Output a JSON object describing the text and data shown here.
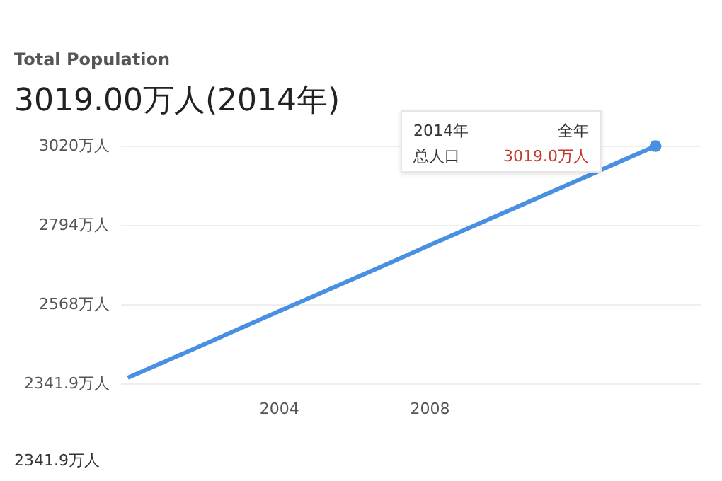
{
  "chart_data": {
    "type": "line",
    "title": "Total Population",
    "subtitle": "3019.00万人(2014年)",
    "x": [
      2000,
      2001,
      2002,
      2003,
      2004,
      2005,
      2006,
      2007,
      2008,
      2009,
      2010,
      2011,
      2012,
      2013,
      2014
    ],
    "series": [
      {
        "color": "#4a90e2",
        "values": [
          2358,
          2405,
          2452,
          2500,
          2547,
          2594,
          2641,
          2688,
          2736,
          2783,
          2830,
          2877,
          2924,
          2972,
          3019.0
        ]
      },
      {
        "type": "scatter",
        "color": "#4a90e2",
        "x": [
          2014
        ],
        "values": [
          3019.0
        ]
      }
    ],
    "xlim": [
      1999.8,
      2015.2
    ],
    "xticks": [
      2004,
      2008
    ],
    "ylim": [
      2341.9,
      3020
    ],
    "yticks": [
      {
        "value": 2341.9,
        "label": "2341.9万人"
      },
      {
        "value": 2568,
        "label": "2568万人"
      },
      {
        "value": 2794,
        "label": "2794万人"
      },
      {
        "value": 3020,
        "label": "3020万人"
      }
    ],
    "grid": "y",
    "annotations": [
      "2014年",
      "全年",
      "总人口",
      "3019.0万人",
      "2341.9万人"
    ]
  }
}
